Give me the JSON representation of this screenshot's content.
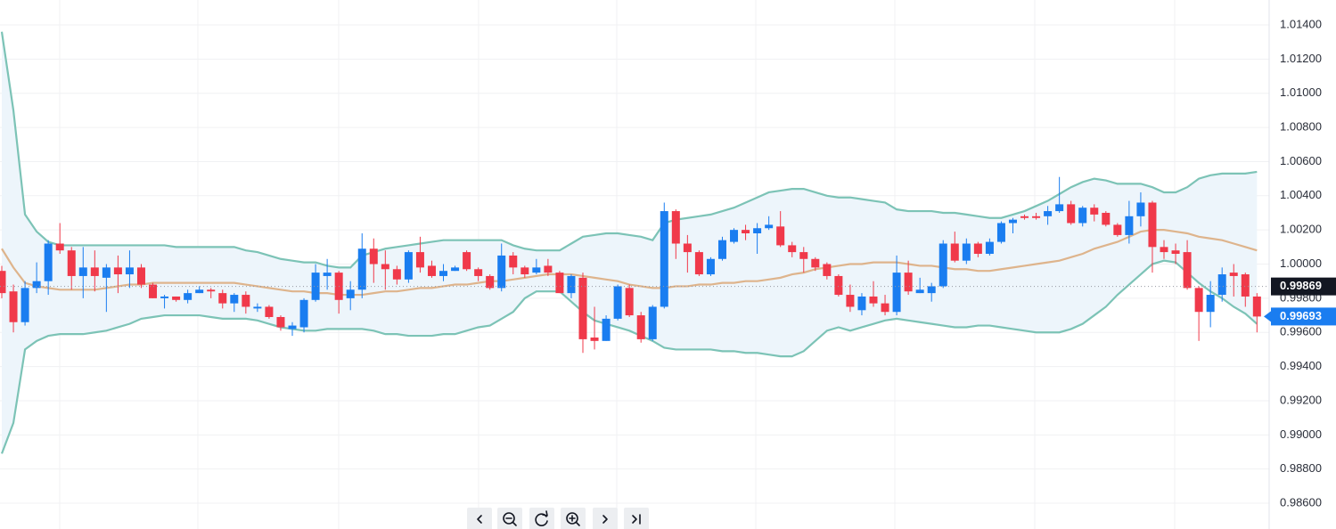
{
  "chart_data": {
    "type": "candlestick",
    "ylim": [
      0.98449,
      1.01546
    ],
    "yticks": [
      {
        "value": 0.986,
        "label": "0.98600"
      },
      {
        "value": 0.988,
        "label": "0.98800"
      },
      {
        "value": 0.99,
        "label": "0.99000"
      },
      {
        "value": 0.992,
        "label": "0.99200"
      },
      {
        "value": 0.994,
        "label": "0.99400"
      },
      {
        "value": 0.996,
        "label": "0.99600"
      },
      {
        "value": 0.998,
        "label": "0.99800"
      },
      {
        "value": 1.0,
        "label": "1.00000"
      },
      {
        "value": 1.002,
        "label": "1.00200"
      },
      {
        "value": 1.004,
        "label": "1.00400"
      },
      {
        "value": 1.006,
        "label": "1.00600"
      },
      {
        "value": 1.008,
        "label": "1.00800"
      },
      {
        "value": 1.01,
        "label": "1.01000"
      },
      {
        "value": 1.012,
        "label": "1.01200"
      },
      {
        "value": 1.014,
        "label": "1.01400"
      }
    ],
    "grid": true,
    "up_color": "#1a7df0",
    "down_color": "#f0394a",
    "open": [
      0.9996,
      0.9984,
      0.9966,
      0.9986,
      0.999,
      1.0012,
      1.0008,
      0.9993,
      0.9998,
      0.9992,
      0.9998,
      0.9994,
      0.9998,
      0.9988,
      0.998,
      0.9981,
      0.9979,
      0.9983,
      0.9985,
      0.9983,
      0.9977,
      0.9982,
      0.9974,
      0.9975,
      0.9969,
      0.9962,
      0.9963,
      0.9979,
      0.9993,
      0.9995,
      0.998,
      0.9985,
      1.0009,
      1.0,
      0.9997,
      0.9991,
      1.0007,
      0.9999,
      0.9993,
      0.9996,
      1.0007,
      0.9997,
      0.9993,
      0.9986,
      1.0005,
      0.9998,
      0.9995,
      0.9999,
      0.9995,
      0.9983,
      0.9992,
      0.9957,
      0.9955,
      0.9968,
      0.9986,
      0.997,
      0.9956,
      0.9975,
      1.0031,
      1.0012,
      1.0007,
      0.9994,
      1.0003,
      1.0013,
      1.002,
      1.0018,
      1.0021,
      1.0022,
      1.0011,
      1.0007,
      1.0003,
      1.0,
      0.9993,
      0.9982,
      0.9973,
      0.9981,
      0.9977,
      0.9972,
      0.9995,
      0.9983,
      0.9983,
      0.9987,
      1.0012,
      1.0002,
      1.0012,
      1.0006,
      1.0013,
      1.0024,
      1.0028,
      1.0028,
      1.0028,
      1.0031,
      1.0035,
      1.0024,
      1.0033,
      1.003,
      1.0023,
      1.0017,
      1.0028,
      1.0036,
      1.001,
      1.0008,
      1.0007,
      0.9986,
      0.9972,
      0.9982,
      0.9995,
      0.9994,
      0.9981
    ],
    "high": [
      0.9999,
      0.9988,
      0.999,
      1.0001,
      1.0014,
      1.0024,
      1.001,
      1.001,
      1.0008,
      1.0,
      1.0005,
      1.0008,
      1.0,
      0.9989,
      0.9982,
      0.9981,
      0.9985,
      0.9987,
      0.9986,
      0.9985,
      0.9983,
      0.9984,
      0.9977,
      0.9976,
      0.997,
      0.9966,
      0.998,
      1.0,
      1.0003,
      0.9996,
      0.999,
      1.0018,
      1.0015,
      1.0008,
      0.9999,
      1.0008,
      1.0016,
      1.0002,
      1.0,
      0.9999,
      1.0008,
      0.9998,
      0.9994,
      1.0012,
      1.0007,
      0.9999,
      1.0003,
      1.0003,
      0.9996,
      0.9994,
      0.9995,
      0.9975,
      0.997,
      0.9988,
      0.9988,
      0.9972,
      0.9976,
      1.0036,
      1.0032,
      1.0017,
      1.0008,
      1.0004,
      1.0016,
      1.0021,
      1.0023,
      1.0024,
      1.0028,
      1.0031,
      1.0013,
      1.001,
      1.0004,
      1.0001,
      0.9994,
      0.9988,
      0.9983,
      0.999,
      0.9982,
      1.0005,
      1.0002,
      0.9992,
      0.9989,
      1.0014,
      1.0019,
      1.0015,
      1.0013,
      1.0015,
      1.0025,
      1.0027,
      1.0029,
      1.003,
      1.0034,
      1.0051,
      1.0037,
      1.0034,
      1.0035,
      1.0031,
      1.0024,
      1.0037,
      1.0042,
      1.0037,
      1.0014,
      1.0012,
      1.0014,
      0.9987,
      0.999,
      0.9998,
      1.0,
      0.9995,
      0.9983
    ],
    "low": [
      0.998,
      0.996,
      0.9964,
      0.9983,
      0.9982,
      1.0006,
      0.9985,
      0.998,
      0.9984,
      0.9972,
      0.9983,
      0.9986,
      0.9986,
      0.998,
      0.9974,
      0.9978,
      0.9977,
      0.9983,
      0.998,
      0.9974,
      0.9972,
      0.9971,
      0.9972,
      0.9968,
      0.9961,
      0.9958,
      0.996,
      0.9978,
      0.9985,
      0.9971,
      0.9973,
      0.998,
      0.9989,
      0.9985,
      0.9988,
      0.9989,
      0.9995,
      0.9992,
      0.999,
      0.9996,
      0.9996,
      0.999,
      0.9985,
      0.9984,
      0.9994,
      0.9992,
      0.9994,
      0.9993,
      0.9983,
      0.998,
      0.9948,
      0.995,
      0.9955,
      0.9967,
      0.9969,
      0.9954,
      0.9955,
      0.9974,
      1.0003,
      0.9995,
      0.9993,
      0.9993,
      1.0002,
      1.0012,
      1.0014,
      1.0006,
      1.002,
      1.001,
      1.0004,
      0.9995,
      0.9996,
      0.9991,
      0.9981,
      0.9972,
      0.997,
      0.9975,
      0.997,
      0.997,
      0.9982,
      0.9983,
      0.9978,
      0.9986,
      1.0001,
      1.0,
      1.0004,
      1.0005,
      1.0012,
      1.0018,
      1.0026,
      1.0026,
      1.0023,
      1.003,
      1.0023,
      1.0022,
      1.0025,
      1.0022,
      1.0016,
      1.0012,
      1.0022,
      0.9995,
      1.0003,
      1.0,
      0.9985,
      0.9955,
      0.9963,
      0.9978,
      0.9981,
      0.9975,
      0.996
    ],
    "close": [
      0.9983,
      0.9966,
      0.9986,
      0.999,
      1.0012,
      1.0008,
      0.9993,
      0.9998,
      0.9993,
      0.9998,
      0.9994,
      0.9998,
      0.9988,
      0.998,
      0.9981,
      0.9979,
      0.9983,
      0.9985,
      0.9984,
      0.9977,
      0.9982,
      0.9975,
      0.9975,
      0.9969,
      0.9963,
      0.9964,
      0.9979,
      0.9995,
      0.9995,
      0.9979,
      0.9985,
      1.0009,
      1.0,
      0.9997,
      0.9991,
      1.0007,
      0.9998,
      0.9993,
      0.9996,
      0.9998,
      0.9997,
      0.9993,
      0.9986,
      1.0005,
      0.9998,
      0.9994,
      0.9998,
      0.9995,
      0.9983,
      0.9993,
      0.9956,
      0.9955,
      0.9968,
      0.9987,
      0.997,
      0.9956,
      0.9975,
      1.0031,
      1.0012,
      1.0007,
      0.9994,
      1.0003,
      1.0014,
      1.002,
      1.0018,
      1.0021,
      1.0023,
      1.0011,
      1.0007,
      1.0003,
      0.9998,
      0.9993,
      0.9982,
      0.9975,
      0.9981,
      0.9977,
      0.9972,
      0.9995,
      0.9984,
      0.9985,
      0.9987,
      1.0012,
      1.0002,
      1.0012,
      1.0006,
      1.0013,
      1.0024,
      1.0026,
      1.0027,
      1.0027,
      1.0031,
      1.0035,
      1.0024,
      1.0033,
      1.0029,
      1.0023,
      1.0017,
      1.0028,
      1.0036,
      1.001,
      1.0007,
      1.0006,
      0.9986,
      0.9972,
      0.9982,
      0.9994,
      0.9993,
      0.9981,
      0.99693
    ],
    "band_fill": "#edf5fb",
    "series": [
      {
        "color": "#7cc3b6",
        "values": [
          1.0136,
          1.009,
          1.0029,
          1.0019,
          1.0013,
          1.0011,
          1.0011,
          1.0011,
          1.0011,
          1.0011,
          1.0011,
          1.0011,
          1.0011,
          1.0011,
          1.0011,
          1.001,
          1.001,
          1.001,
          1.001,
          1.001,
          1.001,
          1.0008,
          1.0007,
          1.0005,
          1.0003,
          1.0002,
          1.0001,
          1.0001,
          0.9999,
          0.9998,
          0.9998,
          1.0005,
          1.0007,
          1.0009,
          1.001,
          1.0011,
          1.0012,
          1.0013,
          1.0014,
          1.0014,
          1.0014,
          1.0014,
          1.0014,
          1.0014,
          1.0011,
          1.0009,
          1.0008,
          1.0008,
          1.0008,
          1.0012,
          1.0016,
          1.0017,
          1.0018,
          1.0018,
          1.0017,
          1.0016,
          1.0014,
          1.0024,
          1.0026,
          1.0027,
          1.0028,
          1.0029,
          1.0031,
          1.0033,
          1.0036,
          1.0039,
          1.0042,
          1.0043,
          1.0044,
          1.0044,
          1.0042,
          1.004,
          1.0039,
          1.0039,
          1.0038,
          1.0037,
          1.0036,
          1.0032,
          1.0031,
          1.0031,
          1.0031,
          1.003,
          1.003,
          1.0029,
          1.0028,
          1.0027,
          1.0027,
          1.0029,
          1.0031,
          1.0034,
          1.0037,
          1.0041,
          1.0045,
          1.0048,
          1.005,
          1.0049,
          1.0047,
          1.0047,
          1.0047,
          1.0045,
          1.0042,
          1.0042,
          1.0045,
          1.005,
          1.0052,
          1.0053,
          1.0053,
          1.0053,
          1.0054
        ]
      },
      {
        "color": "#deb48c",
        "values": [
          1.0009,
          0.9998,
          0.9989,
          0.9987,
          0.9986,
          0.9985,
          0.9985,
          0.9985,
          0.9985,
          0.9986,
          0.9987,
          0.9988,
          0.9988,
          0.9989,
          0.9989,
          0.9989,
          0.9989,
          0.9989,
          0.9989,
          0.9989,
          0.9989,
          0.9988,
          0.9987,
          0.9986,
          0.9985,
          0.9984,
          0.9984,
          0.9983,
          0.9983,
          0.9982,
          0.9982,
          0.9982,
          0.9983,
          0.9984,
          0.9984,
          0.9985,
          0.9986,
          0.9986,
          0.9987,
          0.9988,
          0.9988,
          0.9989,
          0.999,
          0.999,
          0.9991,
          0.9992,
          0.9993,
          0.9994,
          0.9994,
          0.9994,
          0.9993,
          0.9992,
          0.9991,
          0.999,
          0.9988,
          0.9987,
          0.9986,
          0.9986,
          0.9987,
          0.9987,
          0.9988,
          0.9988,
          0.9989,
          0.9989,
          0.999,
          0.999,
          0.9991,
          0.9992,
          0.9994,
          0.9995,
          0.9997,
          0.9998,
          0.9999,
          1.0,
          1.0,
          1.0001,
          1.0001,
          1.0001,
          1.0,
          0.9999,
          0.9999,
          0.9998,
          0.9997,
          0.9997,
          0.9996,
          0.9996,
          0.9997,
          0.9998,
          0.9999,
          1.0,
          1.0001,
          1.0002,
          1.0004,
          1.0006,
          1.0009,
          1.0011,
          1.0013,
          1.0016,
          1.0019,
          1.002,
          1.002,
          1.0019,
          1.0018,
          1.0016,
          1.0015,
          1.0014,
          1.0012,
          1.001,
          1.0008
        ]
      },
      {
        "color": "#7cc3b6",
        "values": [
          0.9889,
          0.9907,
          0.995,
          0.9955,
          0.9958,
          0.9959,
          0.9959,
          0.9959,
          0.996,
          0.9961,
          0.9963,
          0.9965,
          0.9968,
          0.9969,
          0.997,
          0.997,
          0.997,
          0.997,
          0.9969,
          0.9968,
          0.9968,
          0.9968,
          0.9967,
          0.9965,
          0.9963,
          0.9962,
          0.9961,
          0.9961,
          0.9962,
          0.9962,
          0.9962,
          0.9962,
          0.9961,
          0.9959,
          0.9959,
          0.9958,
          0.9958,
          0.9958,
          0.9959,
          0.9959,
          0.9961,
          0.9963,
          0.9964,
          0.9968,
          0.9972,
          0.998,
          0.9984,
          0.9984,
          0.9984,
          0.9978,
          0.9972,
          0.9967,
          0.9965,
          0.9963,
          0.9961,
          0.9958,
          0.9955,
          0.9951,
          0.995,
          0.995,
          0.995,
          0.995,
          0.9949,
          0.9949,
          0.9948,
          0.9948,
          0.9947,
          0.9946,
          0.9946,
          0.9949,
          0.9955,
          0.9961,
          0.9963,
          0.9961,
          0.9963,
          0.9965,
          0.9967,
          0.9968,
          0.9967,
          0.9966,
          0.9965,
          0.9964,
          0.9963,
          0.9963,
          0.9964,
          0.9964,
          0.9963,
          0.9962,
          0.9961,
          0.996,
          0.996,
          0.996,
          0.9962,
          0.9965,
          0.997,
          0.9975,
          0.9982,
          0.9988,
          0.9994,
          1.0,
          1.0002,
          1.0001,
          0.9995,
          0.9989,
          0.9984,
          0.998,
          0.9975,
          0.9971,
          0.9965
        ]
      }
    ],
    "price_lines": [
      {
        "value": 0.99869,
        "color": "#131722",
        "dashed": true
      },
      {
        "value": 0.99693,
        "color": "#1a7df0",
        "dashed": false
      }
    ]
  }
}
